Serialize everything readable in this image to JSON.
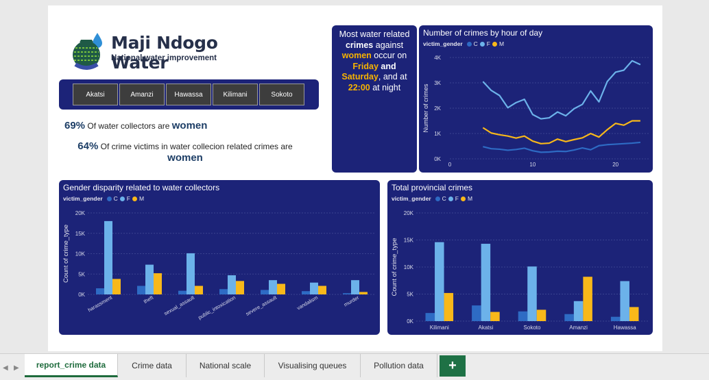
{
  "brand": {
    "title": "Maji Ndogo Water",
    "subtitle": "National water improvement"
  },
  "slicer": {
    "items": [
      "Akatsi",
      "Amanzi",
      "Hawassa",
      "Kilimani",
      "Sokoto"
    ]
  },
  "stats": {
    "s1_pct": "69%",
    "s1_text": "Of water collectors are",
    "s1_em": "women",
    "s2_pct": "64%",
    "s2_text": "Of crime victims in water collecion related crimes are",
    "s2_em": "women"
  },
  "callout": {
    "p1": "Most water related",
    "p2": "crimes",
    "p3": " against",
    "p4": "women",
    "p5": " occur on",
    "p6": "Friday",
    "p7": " and",
    "p8": "Saturday",
    "p9": ", and at",
    "p10": "22:00",
    "p11": " at night"
  },
  "colors": {
    "C": "#2e6bc4",
    "F": "#6cb2ea",
    "M": "#f8b81a",
    "panel": "#1c2378",
    "accent": "#1e7145"
  },
  "legend": {
    "title": "victim_gender",
    "C": "C",
    "F": "F",
    "M": "M"
  },
  "chart_data": [
    {
      "id": "hour",
      "type": "line",
      "title": "Number of crimes by hour of day",
      "xlabel": "",
      "ylabel": "Number of crimes",
      "xlim": [
        0,
        24
      ],
      "ylim": [
        0,
        4000
      ],
      "xticks": [
        0,
        10,
        20
      ],
      "yticks": [
        "0K",
        "1K",
        "2K",
        "3K",
        "4K"
      ],
      "x": [
        4,
        5,
        6,
        7,
        8,
        9,
        10,
        11,
        12,
        13,
        14,
        15,
        16,
        17,
        18,
        19,
        20,
        21,
        22,
        23
      ],
      "series": [
        {
          "name": "C",
          "values": [
            480,
            400,
            380,
            340,
            370,
            420,
            320,
            260,
            270,
            300,
            290,
            350,
            430,
            360,
            520,
            560,
            580,
            600,
            620,
            650
          ]
        },
        {
          "name": "F",
          "values": [
            3050,
            2700,
            2500,
            2020,
            2220,
            2350,
            1750,
            1580,
            1620,
            1850,
            1700,
            1980,
            2150,
            2680,
            2250,
            3050,
            3420,
            3500,
            3870,
            3720
          ]
        },
        {
          "name": "M",
          "values": [
            1230,
            1020,
            950,
            900,
            820,
            900,
            700,
            600,
            620,
            780,
            680,
            760,
            830,
            1000,
            860,
            1150,
            1400,
            1330,
            1500,
            1500
          ]
        }
      ]
    },
    {
      "id": "gender",
      "type": "bar",
      "title": "Gender disparity related to water collectors",
      "xlabel": "",
      "ylabel": "Count of crime_type",
      "ylim": [
        0,
        20000
      ],
      "yticks": [
        "0K",
        "5K",
        "10K",
        "15K",
        "20K"
      ],
      "categories": [
        "harassment",
        "theft",
        "sexual_assault",
        "public_intoxication",
        "severe_assault",
        "vandalism",
        "murder"
      ],
      "series": [
        {
          "name": "C",
          "values": [
            1500,
            2100,
            900,
            1300,
            1100,
            800,
            300
          ]
        },
        {
          "name": "F",
          "values": [
            18000,
            7300,
            10100,
            4700,
            3500,
            2900,
            3500
          ]
        },
        {
          "name": "M",
          "values": [
            3800,
            5200,
            2100,
            3300,
            2600,
            2100,
            600
          ]
        }
      ]
    },
    {
      "id": "province",
      "type": "bar",
      "title": "Total provincial crimes",
      "xlabel": "",
      "ylabel": "Count of crime_type",
      "ylim": [
        0,
        20000
      ],
      "yticks": [
        "0K",
        "5K",
        "10K",
        "15K",
        "20K"
      ],
      "categories": [
        "Kilimani",
        "Akatsi",
        "Sokoto",
        "Amanzi",
        "Hawassa"
      ],
      "series": [
        {
          "name": "C",
          "values": [
            1500,
            2900,
            1800,
            1300,
            800
          ]
        },
        {
          "name": "F",
          "values": [
            14600,
            14300,
            10100,
            3700,
            7400
          ]
        },
        {
          "name": "M",
          "values": [
            5200,
            1700,
            2100,
            8200,
            2600
          ]
        }
      ]
    }
  ],
  "tabs": [
    "report_crime data",
    "Crime data",
    "National scale",
    "Visualising queues",
    "Pollution data"
  ],
  "add_tab": "+"
}
